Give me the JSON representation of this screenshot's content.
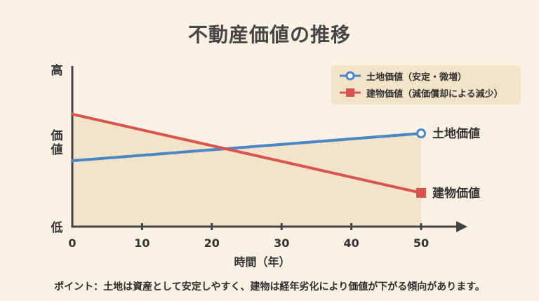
{
  "title": "不動産価値の推移",
  "note": "ポイント：土地は資産として安定しやすく、建物は経年劣化により価値が下がる傾向があります。",
  "colors": {
    "land": "#4a86c5",
    "building": "#d9534f",
    "fill": "#f3e3c9",
    "axis": "#444444"
  },
  "chart_data": {
    "type": "line",
    "title": "不動産価値の推移",
    "xlabel": "時間（年）",
    "ylabel": "価値",
    "y_top_label": "高",
    "y_bottom_label": "低",
    "xlim": [
      0,
      50
    ],
    "ylim": [
      0,
      100
    ],
    "x_ticks": [
      0,
      10,
      20,
      30,
      40,
      50
    ],
    "grid": false,
    "legend_position": "top-right",
    "series": [
      {
        "key": "land",
        "name": "土地価値（安定・微増）",
        "end_label": "土地価値",
        "marker": "circle",
        "x": [
          0,
          50
        ],
        "y": [
          41,
          58
        ]
      },
      {
        "key": "building",
        "name": "建物価値（減価償却による減少）",
        "end_label": "建物価値",
        "marker": "square",
        "x": [
          0,
          50
        ],
        "y": [
          70,
          21
        ]
      }
    ]
  }
}
